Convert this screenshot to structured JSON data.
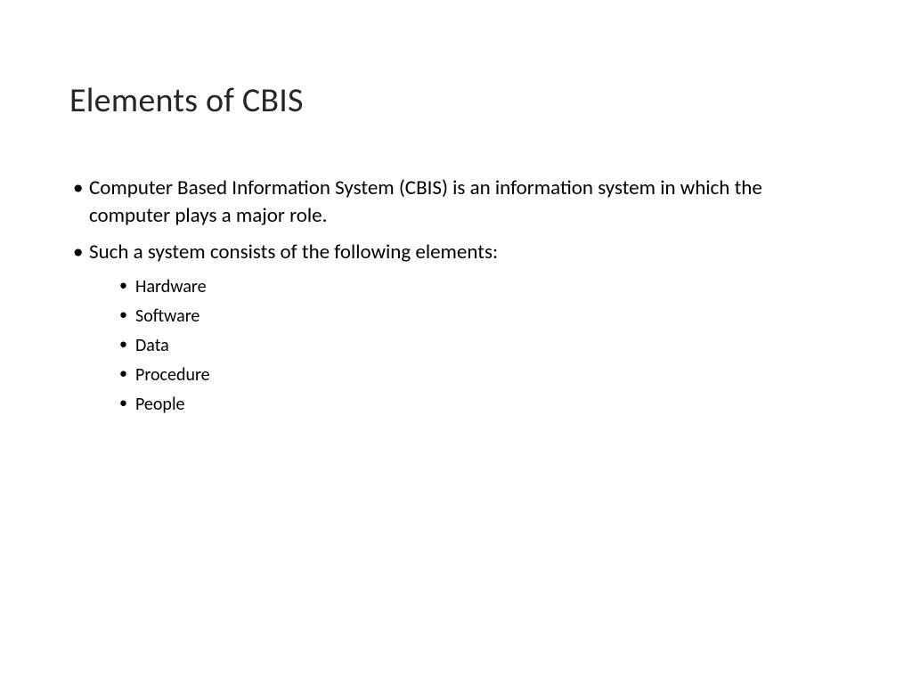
{
  "slide": {
    "title": "Elements of CBIS",
    "bullets": [
      {
        "text": "Computer Based Information System (CBIS) is an information system in which the computer plays a major role."
      },
      {
        "text": "Such a system consists of the following elements:",
        "sub_bullets": [
          "Hardware",
          "Software",
          "Data",
          "Procedure",
          "People"
        ]
      }
    ]
  },
  "styling": {
    "background_color": "#ffffff",
    "title_color": "#262626",
    "text_color": "#000000",
    "title_fontsize": 38,
    "body_fontsize": 23,
    "sub_fontsize": 20,
    "font_family": "Calibri"
  }
}
